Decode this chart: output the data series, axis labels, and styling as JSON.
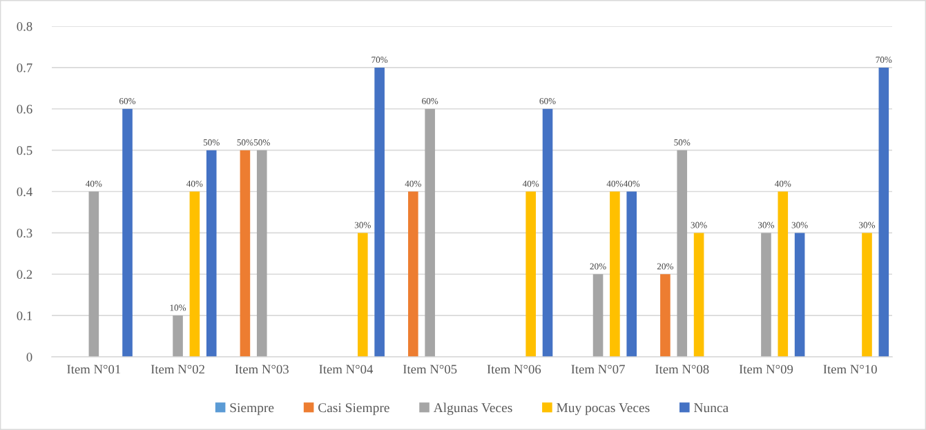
{
  "chart_data": {
    "type": "bar",
    "categories": [
      "Item N°01",
      "Item N°02",
      "Item N°03",
      "Item N°04",
      "Item N°05",
      "Item N°06",
      "Item N°07",
      "Item N°08",
      "Item N°09",
      "Item N°10"
    ],
    "series": [
      {
        "name": "Siempre",
        "color": "#5b9bd5",
        "values": [
          0,
          0,
          0,
          0,
          0,
          0,
          0,
          0,
          0,
          0
        ],
        "value_labels": [
          null,
          null,
          null,
          null,
          null,
          null,
          null,
          null,
          null,
          null
        ]
      },
      {
        "name": "Casi Siempre",
        "color": "#ed7d31",
        "values": [
          0,
          0,
          0.5,
          0,
          0.4,
          0,
          0,
          0.2,
          0,
          0
        ],
        "value_labels": [
          null,
          null,
          "50%",
          null,
          "40%",
          null,
          null,
          "20%",
          null,
          null
        ]
      },
      {
        "name": "Algunas Veces",
        "color": "#a5a5a5",
        "values": [
          0.4,
          0.1,
          0.5,
          0,
          0.6,
          0,
          0.2,
          0.5,
          0.3,
          0
        ],
        "value_labels": [
          "40%",
          "10%",
          "50%",
          null,
          "60%",
          null,
          "20%",
          "50%",
          "30%",
          null
        ]
      },
      {
        "name": "Muy pocas Veces",
        "color": "#ffc000",
        "values": [
          0,
          0.4,
          0,
          0.3,
          0,
          0.4,
          0.4,
          0.3,
          0.4,
          0.3
        ],
        "value_labels": [
          null,
          "40%",
          null,
          "30%",
          null,
          "40%",
          "40%",
          "30%",
          "40%",
          "30%"
        ]
      },
      {
        "name": "Nunca",
        "color": "#4472c4",
        "values": [
          0.6,
          0.5,
          0,
          0.7,
          0,
          0.6,
          0.4,
          0,
          0.3,
          0.7
        ],
        "value_labels": [
          "60%",
          "50%",
          null,
          "70%",
          null,
          "60%",
          "40%",
          null,
          "30%",
          "70%"
        ]
      }
    ],
    "ylim": [
      0,
      0.8
    ],
    "yticks": [
      0,
      0.1,
      0.2,
      0.3,
      0.4,
      0.5,
      0.6,
      0.7,
      0.8
    ],
    "grid": "y",
    "legend": "bottom"
  }
}
